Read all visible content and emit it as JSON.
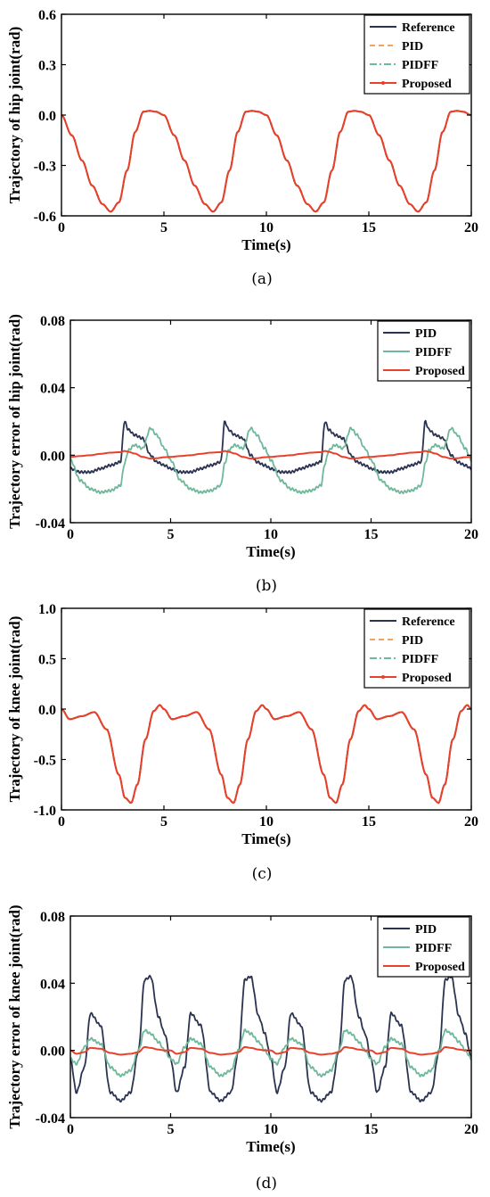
{
  "chart_data": [
    {
      "type": "line",
      "caption": "(a)",
      "xlabel": "Time(s)",
      "ylabel": "Trajectory of hip joint(rad)",
      "xlim": [
        0,
        20
      ],
      "ylim": [
        -0.6,
        0.6
      ],
      "xticks": [
        0,
        5,
        10,
        15,
        20
      ],
      "xtick_labels": [
        "0",
        "5",
        "10",
        "15",
        "20"
      ],
      "yticks": [
        -0.6,
        -0.3,
        0.0,
        0.3,
        0.6
      ],
      "ytick_labels": [
        "-0.6",
        "-0.3",
        "0.0",
        "0.3",
        "0.6"
      ],
      "legend_position": "top-right",
      "grid": false,
      "period": 5,
      "x": [
        0,
        0.5,
        1.0,
        1.5,
        2.0,
        2.4,
        2.8,
        3.2,
        3.6,
        4.0,
        4.3,
        4.6,
        5.0
      ],
      "series": [
        {
          "name": "Reference",
          "color": "#2b3350",
          "style": "solid",
          "y": [
            0.0,
            -0.12,
            -0.27,
            -0.42,
            -0.53,
            -0.575,
            -0.52,
            -0.33,
            -0.1,
            0.02,
            0.025,
            0.02,
            0.0
          ]
        },
        {
          "name": "PID",
          "color": "#f2a35e",
          "style": "dashed",
          "y": [
            0.0,
            -0.12,
            -0.27,
            -0.42,
            -0.53,
            -0.575,
            -0.52,
            -0.33,
            -0.1,
            0.02,
            0.025,
            0.02,
            0.0
          ]
        },
        {
          "name": "PIDFF",
          "color": "#6fb89a",
          "style": "dashdot",
          "y": [
            0.0,
            -0.12,
            -0.27,
            -0.42,
            -0.53,
            -0.575,
            -0.52,
            -0.33,
            -0.1,
            0.02,
            0.025,
            0.02,
            0.0
          ]
        },
        {
          "name": "Proposed",
          "color": "#e8402a",
          "style": "solid-marker",
          "y": [
            0.0,
            -0.12,
            -0.27,
            -0.42,
            -0.53,
            -0.575,
            -0.52,
            -0.33,
            -0.1,
            0.02,
            0.025,
            0.02,
            0.0
          ]
        }
      ]
    },
    {
      "type": "line",
      "caption": "(b)",
      "xlabel": "Time(s)",
      "ylabel": "Trajectory error of hip joint(rad)",
      "xlim": [
        0,
        20
      ],
      "ylim": [
        -0.04,
        0.08
      ],
      "xticks": [
        0,
        5,
        10,
        15,
        20
      ],
      "xtick_labels": [
        "0",
        "5",
        "10",
        "15",
        "20"
      ],
      "yticks": [
        -0.04,
        0.0,
        0.04,
        0.08
      ],
      "ytick_labels": [
        "-0.04",
        "0.00",
        "0.04",
        "0.08"
      ],
      "legend_position": "top-right",
      "grid": false,
      "period": 5,
      "x": [
        0,
        0.5,
        1.0,
        1.5,
        2.0,
        2.5,
        2.7,
        2.9,
        3.2,
        3.6,
        4.0,
        4.3,
        4.7,
        5.0
      ],
      "series": [
        {
          "name": "PID",
          "color": "#2b3350",
          "style": "solid",
          "y": [
            -0.008,
            -0.01,
            -0.01,
            -0.008,
            -0.006,
            -0.004,
            0.02,
            0.015,
            0.012,
            0.01,
            0.0,
            -0.004,
            -0.006,
            -0.008
          ]
        },
        {
          "name": "PIDFF",
          "color": "#6fb89a",
          "style": "solid",
          "y": [
            -0.003,
            -0.015,
            -0.02,
            -0.022,
            -0.021,
            -0.018,
            -0.005,
            0.003,
            0.006,
            0.004,
            0.016,
            0.012,
            0.004,
            -0.003
          ]
        },
        {
          "name": "Proposed",
          "color": "#e8402a",
          "style": "solid",
          "y": [
            -0.001,
            -0.0005,
            0.0,
            0.0008,
            0.0015,
            0.0018,
            0.0025,
            0.002,
            0.001,
            -0.001,
            -0.002,
            -0.0018,
            -0.0012,
            -0.001
          ]
        }
      ]
    },
    {
      "type": "line",
      "caption": "(c)",
      "xlabel": "Time(s)",
      "ylabel": "Trajectory of knee joint(rad)",
      "xlim": [
        0,
        20
      ],
      "ylim": [
        -1.0,
        1.0
      ],
      "xticks": [
        0,
        5,
        10,
        15,
        20
      ],
      "xtick_labels": [
        "0",
        "5",
        "10",
        "15",
        "20"
      ],
      "yticks": [
        -1.0,
        -0.5,
        0.0,
        0.5,
        1.0
      ],
      "ytick_labels": [
        "-1.0",
        "-0.5",
        "0.0",
        "0.5",
        "1.0"
      ],
      "legend_position": "top-right",
      "grid": false,
      "period": 5,
      "x": [
        0,
        0.4,
        1.0,
        1.6,
        2.2,
        2.8,
        3.1,
        3.4,
        3.7,
        4.1,
        4.5,
        4.8,
        5.0
      ],
      "series": [
        {
          "name": "Reference",
          "color": "#2b3350",
          "style": "solid",
          "y": [
            0.0,
            -0.1,
            -0.07,
            -0.03,
            -0.2,
            -0.65,
            -0.88,
            -0.93,
            -0.75,
            -0.3,
            -0.02,
            0.04,
            0.0
          ]
        },
        {
          "name": "PID",
          "color": "#f2a35e",
          "style": "dashed",
          "y": [
            0.0,
            -0.1,
            -0.07,
            -0.03,
            -0.2,
            -0.65,
            -0.88,
            -0.93,
            -0.75,
            -0.3,
            -0.02,
            0.04,
            0.0
          ]
        },
        {
          "name": "PIDFF",
          "color": "#6fb89a",
          "style": "dashdot",
          "y": [
            0.0,
            -0.1,
            -0.07,
            -0.03,
            -0.2,
            -0.65,
            -0.88,
            -0.93,
            -0.75,
            -0.3,
            -0.02,
            0.04,
            0.0
          ]
        },
        {
          "name": "Proposed",
          "color": "#e8402a",
          "style": "solid-marker",
          "y": [
            0.0,
            -0.1,
            -0.07,
            -0.03,
            -0.2,
            -0.65,
            -0.88,
            -0.93,
            -0.75,
            -0.3,
            -0.02,
            0.04,
            0.0
          ]
        }
      ]
    },
    {
      "type": "line",
      "caption": "(d)",
      "xlabel": "Time(s)",
      "ylabel": "Trajectory error of knee joint(rad)",
      "xlim": [
        0,
        20
      ],
      "ylim": [
        -0.04,
        0.08
      ],
      "xticks": [
        0,
        5,
        10,
        15,
        20
      ],
      "xtick_labels": [
        "0",
        "5",
        "10",
        "15",
        "20"
      ],
      "yticks": [
        -0.04,
        0.0,
        0.04,
        0.08
      ],
      "ytick_labels": [
        "-0.04",
        "0.00",
        "0.04",
        "0.08"
      ],
      "legend_position": "top-right",
      "grid": false,
      "period": 5,
      "x": [
        0,
        0.3,
        0.7,
        1.0,
        1.5,
        2.0,
        2.5,
        3.0,
        3.4,
        3.7,
        4.0,
        4.4,
        4.7,
        5.0
      ],
      "series": [
        {
          "name": "PID",
          "color": "#2b3350",
          "style": "solid",
          "y": [
            -0.005,
            -0.025,
            -0.01,
            0.022,
            0.015,
            -0.025,
            -0.03,
            -0.025,
            0.0,
            0.042,
            0.044,
            0.02,
            0.01,
            -0.005
          ]
        },
        {
          "name": "PIDFF",
          "color": "#6fb89a",
          "style": "solid",
          "y": [
            -0.005,
            -0.008,
            0.002,
            0.007,
            0.004,
            -0.01,
            -0.015,
            -0.012,
            0.0,
            0.012,
            0.01,
            0.005,
            0.0,
            -0.005
          ]
        },
        {
          "name": "Proposed",
          "color": "#e8402a",
          "style": "solid",
          "y": [
            0.0,
            -0.002,
            -0.001,
            0.0015,
            0.001,
            -0.0015,
            -0.0025,
            -0.002,
            -0.001,
            0.002,
            0.0015,
            0.0005,
            0.0,
            0.0
          ]
        }
      ]
    }
  ]
}
